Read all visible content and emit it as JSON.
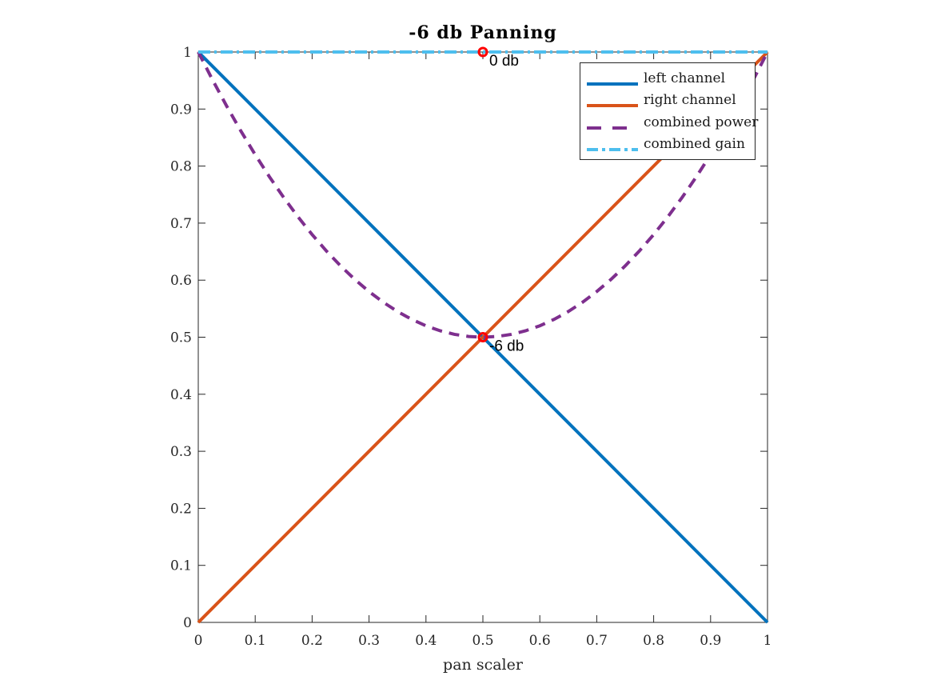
{
  "chart_data": {
    "type": "line",
    "title": "-6 db Panning",
    "xlabel": "pan scaler",
    "ylabel": "",
    "xlim": [
      0,
      1
    ],
    "ylim": [
      0,
      1
    ],
    "xticks": [
      0,
      0.1,
      0.2,
      0.3,
      0.4,
      0.5,
      0.6,
      0.7,
      0.8,
      0.9,
      1
    ],
    "xtick_labels": [
      "0",
      "0.1",
      "0.2",
      "0.3",
      "0.4",
      "0.5",
      "0.6",
      "0.7",
      "0.8",
      "0.9",
      "1"
    ],
    "yticks": [
      0,
      0.1,
      0.2,
      0.3,
      0.4,
      0.5,
      0.6,
      0.7,
      0.8,
      0.9,
      1
    ],
    "ytick_labels": [
      "0",
      "0.1",
      "0.2",
      "0.3",
      "0.4",
      "0.5",
      "0.6",
      "0.7",
      "0.8",
      "0.9",
      "1"
    ],
    "grid": false,
    "axes_box": true,
    "axis_color": "#262626",
    "background": "#ffffff",
    "legend_position": "northeast",
    "series": [
      {
        "name": "left channel",
        "color": "#0072BD",
        "style": "solid",
        "line_width": 4,
        "x": [
          0,
          1
        ],
        "y": [
          1,
          0
        ]
      },
      {
        "name": "right channel",
        "color": "#D95319",
        "style": "solid",
        "line_width": 4,
        "x": [
          0,
          1
        ],
        "y": [
          0,
          1
        ]
      },
      {
        "name": "combined power",
        "color": "#7E2F8E",
        "style": "dashed",
        "line_width": 4,
        "x": [
          0,
          0.025,
          0.05,
          0.075,
          0.1,
          0.125,
          0.15,
          0.175,
          0.2,
          0.225,
          0.25,
          0.275,
          0.3,
          0.325,
          0.35,
          0.375,
          0.4,
          0.425,
          0.45,
          0.475,
          0.5,
          0.525,
          0.55,
          0.575,
          0.6,
          0.625,
          0.65,
          0.675,
          0.7,
          0.725,
          0.75,
          0.775,
          0.8,
          0.825,
          0.85,
          0.875,
          0.9,
          0.925,
          0.95,
          0.975,
          1
        ],
        "y": [
          1,
          0.95125,
          0.905,
          0.86125,
          0.82,
          0.78125,
          0.745,
          0.71125,
          0.68,
          0.65125,
          0.625,
          0.60125,
          0.58,
          0.56125,
          0.545,
          0.53125,
          0.52,
          0.51125,
          0.505,
          0.50125,
          0.5,
          0.50125,
          0.505,
          0.51125,
          0.52,
          0.53125,
          0.545,
          0.56125,
          0.58,
          0.60125,
          0.625,
          0.65125,
          0.68,
          0.71125,
          0.745,
          0.78125,
          0.82,
          0.86125,
          0.905,
          0.95125,
          1
        ]
      },
      {
        "name": "combined gain",
        "color": "#4DBEEE",
        "style": "dashdot",
        "line_width": 4,
        "x": [
          0,
          1
        ],
        "y": [
          1,
          1
        ]
      }
    ],
    "annotations": [
      {
        "label": "0 db",
        "x": 0.5,
        "y": 1,
        "marker": "circle",
        "marker_color": "#FF0000",
        "text_color": "#000000"
      },
      {
        "label": "-6 db",
        "x": 0.5,
        "y": 0.5,
        "marker": "circle",
        "marker_color": "#FF0000",
        "text_color": "#000000"
      }
    ]
  }
}
